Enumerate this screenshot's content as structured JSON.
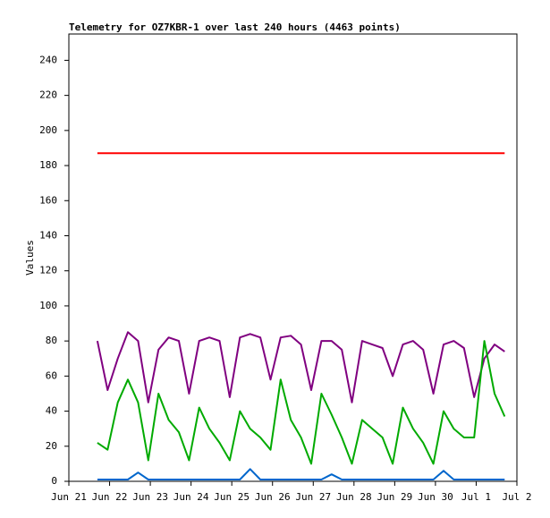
{
  "chart_data": {
    "type": "line",
    "title": "Telemetry for OZ7KBR-1 over last 240 hours (4463 points)",
    "y_label": "Values",
    "x": [
      0.7,
      0.95,
      1.2,
      1.45,
      1.7,
      1.95,
      2.2,
      2.45,
      2.7,
      2.95,
      3.2,
      3.45,
      3.7,
      3.95,
      4.2,
      4.45,
      4.7,
      4.95,
      5.2,
      5.45,
      5.7,
      5.95,
      6.2,
      6.45,
      6.7,
      6.95,
      7.2,
      7.45,
      7.7,
      7.95,
      8.2,
      8.45,
      8.7,
      8.95,
      9.2,
      9.45,
      9.7,
      9.95,
      10.2,
      10.45,
      10.7
    ],
    "series": [
      {
        "color": "#ff0000",
        "values": [
          187,
          187,
          187,
          187,
          187,
          187,
          187,
          187,
          187,
          187,
          187,
          187,
          187,
          187,
          187,
          187,
          187,
          187,
          187,
          187,
          187,
          187,
          187,
          187,
          187,
          187,
          187,
          187,
          187,
          187,
          187,
          187,
          187,
          187,
          187,
          187,
          187,
          187,
          187,
          187,
          187
        ]
      },
      {
        "color": "#800080",
        "values": [
          80,
          52,
          70,
          85,
          80,
          45,
          75,
          82,
          80,
          50,
          80,
          82,
          80,
          48,
          82,
          84,
          82,
          58,
          82,
          83,
          78,
          52,
          80,
          80,
          75,
          45,
          80,
          78,
          76,
          60,
          78,
          80,
          75,
          50,
          78,
          80,
          76,
          48,
          70,
          78,
          74
        ]
      },
      {
        "color": "#00aa00",
        "values": [
          22,
          18,
          45,
          58,
          45,
          12,
          50,
          35,
          28,
          12,
          42,
          30,
          22,
          12,
          40,
          30,
          25,
          18,
          58,
          35,
          25,
          10,
          50,
          38,
          25,
          10,
          35,
          30,
          25,
          10,
          42,
          30,
          22,
          10,
          40,
          30,
          25,
          25,
          80,
          50,
          37
        ]
      },
      {
        "color": "#0066cc",
        "values": [
          1,
          1,
          1,
          1,
          5,
          1,
          1,
          1,
          1,
          1,
          1,
          1,
          1,
          1,
          1,
          7,
          1,
          1,
          1,
          1,
          1,
          1,
          1,
          4,
          1,
          1,
          1,
          1,
          1,
          1,
          1,
          1,
          1,
          1,
          6,
          1,
          1,
          1,
          1,
          1,
          1
        ]
      }
    ],
    "xlim": [
      0,
      11
    ],
    "xticks": [
      {
        "value": 0,
        "label": "Jun 21"
      },
      {
        "value": 1,
        "label": "Jun 22"
      },
      {
        "value": 2,
        "label": "Jun 23"
      },
      {
        "value": 3,
        "label": "Jun 24"
      },
      {
        "value": 4,
        "label": "Jun 25"
      },
      {
        "value": 5,
        "label": "Jun 26"
      },
      {
        "value": 6,
        "label": "Jun 27"
      },
      {
        "value": 7,
        "label": "Jun 28"
      },
      {
        "value": 8,
        "label": "Jun 29"
      },
      {
        "value": 9,
        "label": "Jun 30"
      },
      {
        "value": 10,
        "label": "Jul 1"
      },
      {
        "value": 11,
        "label": "Jul 2"
      }
    ],
    "ylim": [
      0,
      255
    ],
    "yticks": [
      0,
      20,
      40,
      60,
      80,
      100,
      120,
      140,
      160,
      180,
      200,
      220,
      240
    ]
  }
}
